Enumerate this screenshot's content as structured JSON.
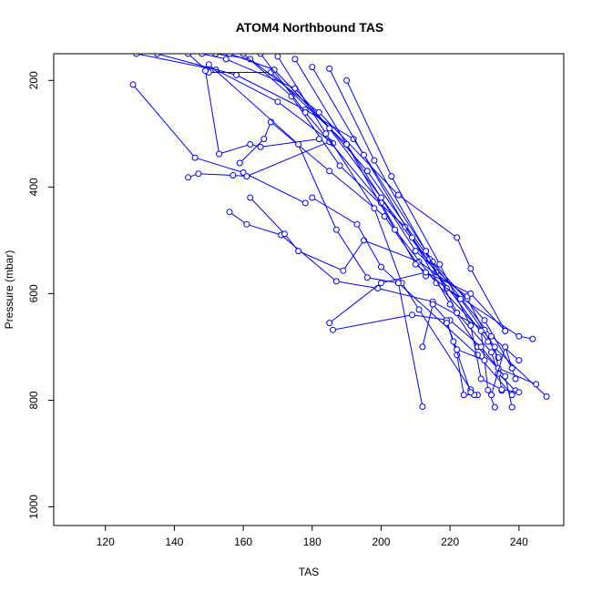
{
  "chart_data": {
    "type": "line",
    "title": "ATOM4 Northbound TAS",
    "xlabel": "TAS",
    "ylabel": "Pressure (mbar)",
    "xlim": [
      105,
      253
    ],
    "ylim": [
      1035,
      150
    ],
    "y_reversed": true,
    "xticks": [
      120,
      140,
      160,
      180,
      200,
      220,
      240
    ],
    "yticks": [
      200,
      400,
      600,
      800,
      1000
    ],
    "grid": false,
    "color": "#0000ff",
    "markers": "open-circle",
    "series": [
      {
        "points": [
          [
            129,
            150
          ],
          [
            152,
            180
          ],
          [
            170,
            240
          ],
          [
            186,
            318
          ]
        ]
      },
      {
        "points": [
          [
            135,
            150
          ],
          [
            158,
            190
          ],
          [
            178,
            255
          ],
          [
            192,
            310
          ],
          [
            215,
            540
          ],
          [
            230,
            650
          ],
          [
            238,
            740
          ]
        ]
      },
      {
        "points": [
          [
            128,
            208
          ],
          [
            146,
            345
          ],
          [
            160,
            373
          ],
          [
            178,
            430
          ]
        ]
      },
      {
        "points": [
          [
            144,
            150
          ],
          [
            150,
            185
          ],
          [
            168,
            185
          ],
          [
            190,
            320
          ],
          [
            210,
            520
          ],
          [
            225,
            610
          ],
          [
            234,
            720
          ]
        ]
      },
      {
        "points": [
          [
            148,
            150
          ],
          [
            155,
            160
          ],
          [
            175,
            215
          ],
          [
            196,
            370
          ],
          [
            214,
            535
          ],
          [
            232,
            680
          ],
          [
            240,
            725
          ]
        ]
      },
      {
        "points": [
          [
            152,
            150
          ],
          [
            162,
            160
          ],
          [
            182,
            260
          ],
          [
            205,
            415
          ],
          [
            222,
            495
          ],
          [
            226,
            553
          ],
          [
            236,
            670
          ]
        ]
      },
      {
        "points": [
          [
            156,
            150
          ],
          [
            169,
            180
          ],
          [
            185,
            290
          ],
          [
            200,
            420
          ],
          [
            216,
            560
          ],
          [
            231,
            690
          ],
          [
            248,
            793
          ]
        ]
      },
      {
        "points": [
          [
            160,
            150
          ],
          [
            174,
            230
          ],
          [
            188,
            360
          ],
          [
            207,
            475
          ],
          [
            219,
            590
          ],
          [
            240,
            680
          ],
          [
            244,
            685
          ]
        ]
      },
      {
        "points": [
          [
            149,
            182
          ],
          [
            153,
            338
          ],
          [
            162,
            320
          ],
          [
            165,
            325
          ],
          [
            182,
            310
          ]
        ]
      },
      {
        "points": [
          [
            144,
            382
          ],
          [
            147,
            375
          ],
          [
            157,
            378
          ],
          [
            161,
            380
          ],
          [
            185,
            315
          ]
        ]
      },
      {
        "points": [
          [
            156,
            447
          ],
          [
            161,
            470
          ],
          [
            171,
            490
          ],
          [
            187,
            577
          ],
          [
            199,
            590
          ],
          [
            215,
            615
          ],
          [
            230,
            668
          ]
        ]
      },
      {
        "points": [
          [
            162,
            420
          ],
          [
            172,
            488
          ],
          [
            176,
            520
          ],
          [
            189,
            557
          ],
          [
            195,
            500
          ],
          [
            211,
            540
          ],
          [
            225,
            605
          ]
        ]
      },
      {
        "points": [
          [
            159,
            355
          ],
          [
            166,
            310
          ],
          [
            168,
            278
          ],
          [
            185,
            370
          ],
          [
            201,
            455
          ],
          [
            213,
            567
          ]
        ]
      },
      {
        "points": [
          [
            150,
            170
          ],
          [
            176,
            320
          ],
          [
            187,
            480
          ],
          [
            196,
            570
          ],
          [
            205,
            580
          ],
          [
            228,
            715
          ],
          [
            238,
            790
          ]
        ]
      },
      {
        "points": [
          [
            165,
            150
          ],
          [
            178,
            260
          ],
          [
            200,
            430
          ],
          [
            210,
            545
          ],
          [
            223,
            610
          ],
          [
            233,
            700
          ],
          [
            235,
            782
          ]
        ]
      },
      {
        "points": [
          [
            170,
            155
          ],
          [
            184,
            300
          ],
          [
            198,
            440
          ],
          [
            206,
            580
          ],
          [
            211,
            630
          ],
          [
            226,
            780
          ],
          [
            228,
            790
          ]
        ]
      },
      {
        "points": [
          [
            175,
            160
          ],
          [
            190,
            320
          ],
          [
            204,
            480
          ],
          [
            216,
            580
          ],
          [
            229,
            670
          ],
          [
            231,
            781
          ],
          [
            233,
            813
          ]
        ]
      },
      {
        "points": [
          [
            180,
            175
          ],
          [
            195,
            340
          ],
          [
            209,
            495
          ],
          [
            220,
            620
          ],
          [
            228,
            700
          ],
          [
            236,
            755
          ],
          [
            238,
            813
          ]
        ]
      },
      {
        "points": [
          [
            185,
            178
          ],
          [
            198,
            350
          ],
          [
            213,
            520
          ],
          [
            222,
            636
          ],
          [
            232,
            710
          ],
          [
            234,
            750
          ],
          [
            239,
            782
          ]
        ]
      },
      {
        "points": [
          [
            190,
            200
          ],
          [
            203,
            380
          ],
          [
            217,
            545
          ],
          [
            226,
            660
          ],
          [
            229,
            760
          ],
          [
            235,
            780
          ],
          [
            240,
            785
          ]
        ]
      },
      {
        "points": [
          [
            185,
            655
          ],
          [
            200,
            580
          ],
          [
            213,
            560
          ],
          [
            226,
            600
          ],
          [
            236,
            670
          ]
        ]
      },
      {
        "points": [
          [
            186,
            668
          ],
          [
            209,
            640
          ],
          [
            220,
            650
          ],
          [
            229,
            700
          ],
          [
            234,
            740
          ],
          [
            245,
            770
          ]
        ]
      },
      {
        "points": [
          [
            212,
            700
          ],
          [
            215,
            620
          ],
          [
            219,
            650
          ],
          [
            222,
            715
          ],
          [
            224,
            790
          ],
          [
            227,
            790
          ]
        ]
      },
      {
        "points": [
          [
            212,
            812
          ],
          [
            205,
            580
          ],
          [
            200,
            550
          ],
          [
            193,
            470
          ],
          [
            180,
            420
          ]
        ]
      },
      {
        "points": [
          [
            226,
            785
          ],
          [
            221,
            690
          ],
          [
            219,
            655
          ],
          [
            222,
            705
          ],
          [
            230,
            725
          ]
        ]
      },
      {
        "points": [
          [
            232,
            790
          ],
          [
            236,
            700
          ],
          [
            238,
            740
          ],
          [
            239,
            760
          ]
        ]
      }
    ]
  }
}
